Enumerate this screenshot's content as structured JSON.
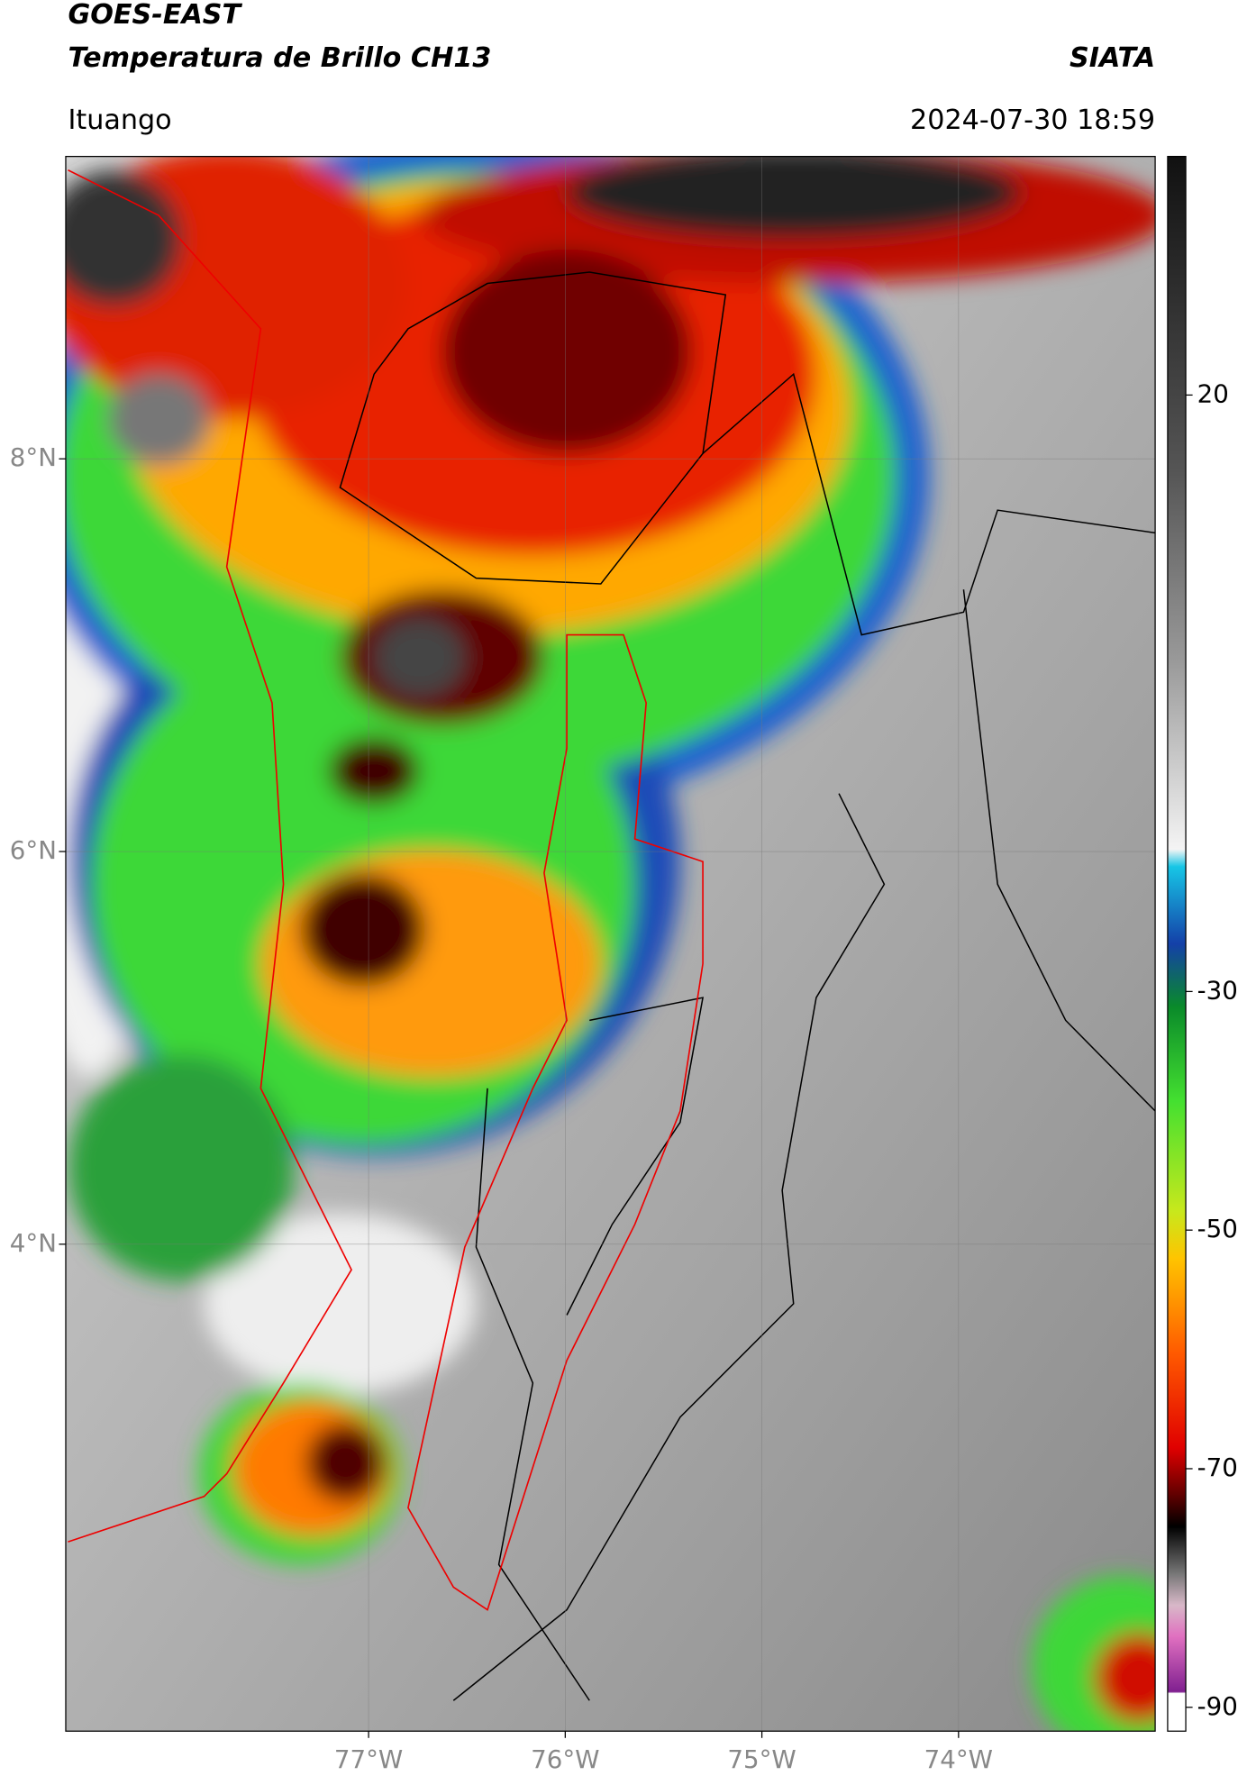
{
  "header": {
    "title_line1": "GOES-EAST",
    "title_line2": "Temperatura de Brillo CH13",
    "source": "SIATA",
    "location": "Ituango",
    "datetime": "2024-07-30 18:59"
  },
  "map": {
    "xlim": [
      -78.54,
      -73.0
    ],
    "ylim": [
      1.52,
      9.54
    ],
    "xticks": [
      {
        "value": -77,
        "label": "77°W"
      },
      {
        "value": -76,
        "label": "76°W"
      },
      {
        "value": -75,
        "label": "75°W"
      },
      {
        "value": -74,
        "label": "74°W"
      }
    ],
    "yticks": [
      {
        "value": 4,
        "label": "4°N"
      },
      {
        "value": 6,
        "label": "6°N"
      },
      {
        "value": 8,
        "label": "8°N"
      }
    ]
  },
  "colorbar": {
    "lim": [
      -92,
      40
    ],
    "ticks": [
      20,
      -30,
      -50,
      -70,
      -90
    ]
  }
}
